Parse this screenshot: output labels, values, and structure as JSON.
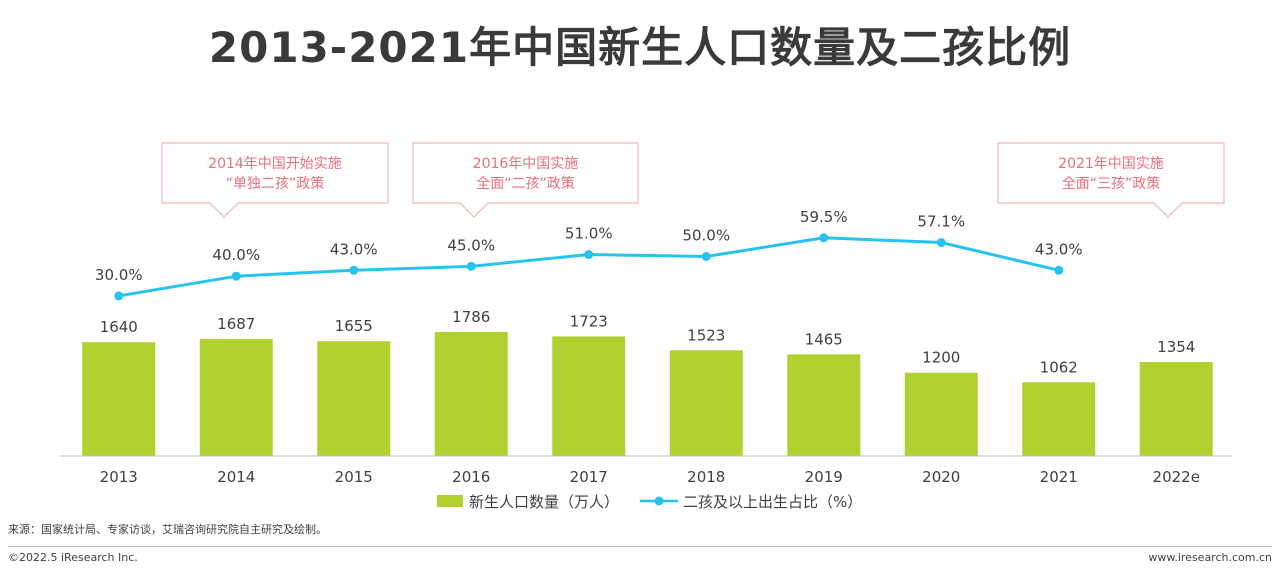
{
  "title": "2013-2021年中国新生人口数量及二孩比例",
  "callouts": [
    {
      "line1": "2014年中国开始实施",
      "line2": "“单独二孩”政策"
    },
    {
      "line1": "2016年中国实施",
      "line2": "全面“二孩”政策"
    },
    {
      "line1": "2021年中国实施",
      "line2": "全面“三孩”政策"
    }
  ],
  "chart_data": {
    "type": "bar",
    "categories": [
      "2013",
      "2014",
      "2015",
      "2016",
      "2017",
      "2018",
      "2019",
      "2020",
      "2021",
      "2022e"
    ],
    "series": [
      {
        "name": "新生人口数量（万人）",
        "type": "bar",
        "color": "#b0d12f",
        "values": [
          1640,
          1687,
          1655,
          1786,
          1723,
          1523,
          1465,
          1200,
          1062,
          1354
        ]
      },
      {
        "name": "二孩及以上出生占比（%）",
        "type": "line",
        "color": "#27c3ef",
        "values": [
          30.0,
          40.0,
          43.0,
          45.0,
          51.0,
          50.0,
          59.5,
          57.1,
          43.0,
          null
        ],
        "labels": [
          "30.0%",
          "40.0%",
          "43.0%",
          "45.0%",
          "51.0%",
          "50.0%",
          "59.5%",
          "57.1%",
          "43.0%",
          null
        ]
      }
    ],
    "legend_position": "bottom"
  },
  "source": "来源：国家统计局、专家访谈，艾瑞咨询研究院自主研究及绘制。",
  "footer": {
    "left": "©2022.5 iResearch Inc.",
    "right": "www.iresearch.com.cn"
  },
  "colors": {
    "accent_red": "#e9707a",
    "bar_green": "#b0d12f",
    "line_blue": "#27c3ef"
  }
}
